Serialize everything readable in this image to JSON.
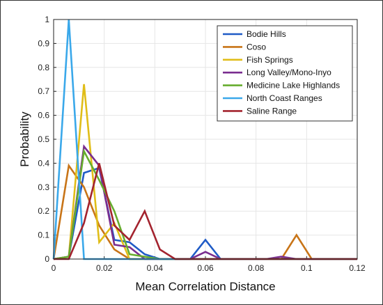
{
  "chart_data": {
    "type": "line",
    "title": "",
    "xlabel": "Mean Correlation Distance",
    "ylabel": "Probability",
    "xlim": [
      0,
      0.12
    ],
    "ylim": [
      0,
      1
    ],
    "xticks": [
      0,
      0.02,
      0.04,
      0.06,
      0.08,
      0.1,
      0.12
    ],
    "xtick_labels": [
      "0",
      "0.02",
      "0.04",
      "0.06",
      "0.08",
      "0.1",
      "0.12"
    ],
    "yticks": [
      0,
      0.1,
      0.2,
      0.3,
      0.4,
      0.5,
      0.6,
      0.7,
      0.8,
      0.9,
      1
    ],
    "ytick_labels": [
      "0",
      "0.1",
      "0.2",
      "0.3",
      "0.4",
      "0.5",
      "0.6",
      "0.7",
      "0.8",
      "0.9",
      "1"
    ],
    "grid": true,
    "legend_position": "top-right",
    "series": [
      {
        "name": "Bodie Hills",
        "color": "#1f5bc6",
        "x": [
          0,
          0.006,
          0.012,
          0.018,
          0.024,
          0.03,
          0.036,
          0.042,
          0.048,
          0.054,
          0.06,
          0.066,
          0.072,
          0.12
        ],
        "y": [
          0,
          0.01,
          0.36,
          0.38,
          0.08,
          0.07,
          0.02,
          0,
          0,
          0,
          0.08,
          0,
          0,
          0
        ]
      },
      {
        "name": "Coso",
        "color": "#c87417",
        "x": [
          0,
          0.006,
          0.012,
          0.018,
          0.024,
          0.03,
          0.036,
          0.042,
          0.084,
          0.09,
          0.096,
          0.102,
          0.108,
          0.12
        ],
        "y": [
          0,
          0.39,
          0.3,
          0.14,
          0.04,
          0,
          0,
          0,
          0,
          0,
          0.1,
          0,
          0,
          0
        ]
      },
      {
        "name": "Fish Springs",
        "color": "#e0bd18",
        "x": [
          0,
          0.006,
          0.012,
          0.018,
          0.024,
          0.03,
          0.036,
          0.12
        ],
        "y": [
          0,
          0.01,
          0.73,
          0.07,
          0.15,
          0,
          0,
          0
        ]
      },
      {
        "name": "Long Valley/Mono-Inyo",
        "color": "#7a2d8f",
        "x": [
          0,
          0.006,
          0.012,
          0.018,
          0.024,
          0.03,
          0.036,
          0.042,
          0.048,
          0.054,
          0.06,
          0.066,
          0.072,
          0.084,
          0.09,
          0.096,
          0.102,
          0.12
        ],
        "y": [
          0,
          0.01,
          0.47,
          0.39,
          0.06,
          0.05,
          0,
          0,
          0,
          0,
          0.03,
          0,
          0,
          0,
          0.01,
          0,
          0,
          0
        ]
      },
      {
        "name": "Medicine Lake Highlands",
        "color": "#66ad2e",
        "x": [
          0,
          0.006,
          0.012,
          0.018,
          0.024,
          0.03,
          0.036,
          0.042,
          0.12
        ],
        "y": [
          0,
          0.01,
          0.45,
          0.33,
          0.2,
          0.02,
          0.01,
          0,
          0
        ]
      },
      {
        "name": "North Coast Ranges",
        "color": "#3aa8ea",
        "x": [
          0,
          0.006,
          0.012,
          0.018,
          0.12
        ],
        "y": [
          0,
          1.0,
          0,
          0,
          0
        ]
      },
      {
        "name": "Saline Range",
        "color": "#a3232e",
        "x": [
          0,
          0.006,
          0.012,
          0.018,
          0.024,
          0.03,
          0.036,
          0.042,
          0.048,
          0.12
        ],
        "y": [
          0,
          0,
          0.15,
          0.4,
          0.14,
          0.08,
          0.2,
          0.04,
          0,
          0
        ]
      }
    ]
  }
}
